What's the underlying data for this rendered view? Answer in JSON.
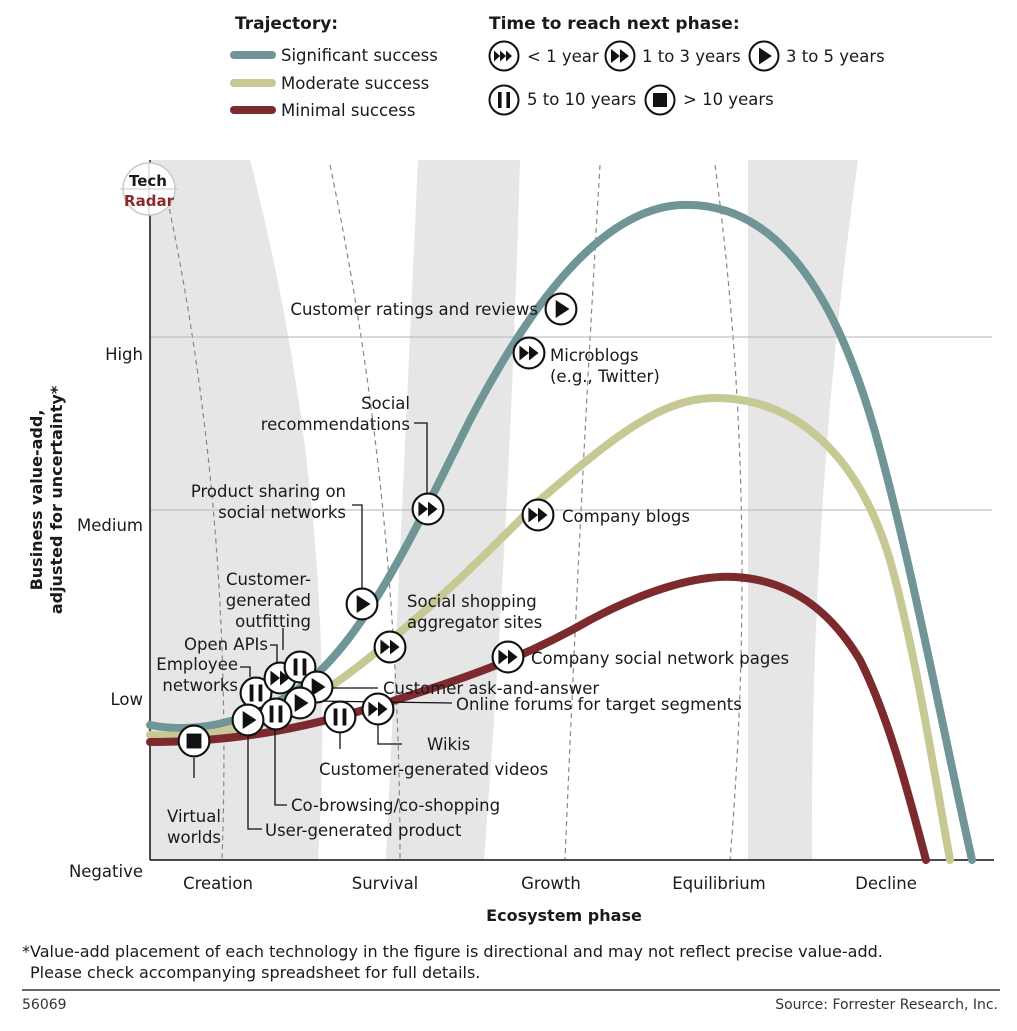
{
  "legend": {
    "trajectory_title": "Trajectory:",
    "trajectory": [
      {
        "label": "Significant success",
        "color": "#6f9596"
      },
      {
        "label": "Moderate success",
        "color": "#c6c994"
      },
      {
        "label": "Minimal success",
        "color": "#7d2a2e"
      }
    ],
    "time_title": "Time to reach next phase:",
    "time": [
      {
        "icon": "triple-arrow",
        "label": "< 1 year"
      },
      {
        "icon": "double-arrow",
        "label": "1 to 3 years"
      },
      {
        "icon": "single-arrow",
        "label": "3 to 5 years"
      },
      {
        "icon": "pause",
        "label": "5 to 10 years"
      },
      {
        "icon": "stop",
        "label": "> 10 years"
      }
    ]
  },
  "logo": {
    "line1": "Tech",
    "line2": "Radar"
  },
  "chart_data": {
    "type": "line",
    "title": "",
    "xlabel": "Ecosystem phase",
    "ylabel_line1": "Business value-add,",
    "ylabel_line2": "adjusted for uncertainty*",
    "x_categories": [
      "Creation",
      "Survival",
      "Growth",
      "Equilibrium",
      "Decline"
    ],
    "y_categories": [
      "Negative",
      "Low",
      "Medium",
      "High"
    ],
    "ylim": [
      "Negative",
      "High"
    ],
    "gridlines": [
      "Medium",
      "High"
    ],
    "series": [
      {
        "name": "Significant success",
        "color": "#6f9596"
      },
      {
        "name": "Moderate success",
        "color": "#c6c994"
      },
      {
        "name": "Minimal success",
        "color": "#7d2a2e"
      }
    ],
    "technologies": [
      {
        "name": "Customer ratings and reviews",
        "time": "single-arrow"
      },
      {
        "name": "Microblogs (e.g., Twitter)",
        "time": "double-arrow"
      },
      {
        "name": "Social recommendations",
        "time": "double-arrow"
      },
      {
        "name": "Company blogs",
        "time": "double-arrow"
      },
      {
        "name": "Product sharing on social networks",
        "time": "single-arrow"
      },
      {
        "name": "Social shopping aggregator sites",
        "time": "double-arrow"
      },
      {
        "name": "Company social network pages",
        "time": "double-arrow"
      },
      {
        "name": "Customer-generated outfitting",
        "time": "pause"
      },
      {
        "name": "Open APIs",
        "time": "double-arrow"
      },
      {
        "name": "Employee networks",
        "time": "pause"
      },
      {
        "name": "Customer ask-and-answer",
        "time": "single-arrow"
      },
      {
        "name": "Online forums for target segments",
        "time": "double-arrow"
      },
      {
        "name": "Wikis",
        "time": "double-arrow"
      },
      {
        "name": "Customer-generated videos",
        "time": "pause"
      },
      {
        "name": "Co-browsing/co-shopping",
        "time": "pause"
      },
      {
        "name": "User-generated product",
        "time": "single-arrow"
      },
      {
        "name": "Virtual worlds",
        "time": "stop"
      }
    ]
  },
  "labels": {
    "ratings": "Customer ratings and reviews",
    "microblogs_1": "Microblogs",
    "microblogs_2": "(e.g., Twitter)",
    "social_rec_1": "Social",
    "social_rec_2": "recommendations",
    "company_blogs": "Company blogs",
    "product_sharing_1": "Product sharing on",
    "product_sharing_2": "social networks",
    "cust_gen_1": "Customer-",
    "cust_gen_2": "generated",
    "cust_gen_3": "outfitting",
    "social_shop_1": "Social shopping",
    "social_shop_2": "aggregator sites",
    "open_apis": "Open APIs",
    "employee_1": "Employee",
    "employee_2": "networks",
    "company_sn": "Company social network pages",
    "ask_answer": "Customer ask-and-answer",
    "forums": "Online forums for target segments",
    "wikis": "Wikis",
    "videos": "Customer-generated videos",
    "cobrowsing": "Co-browsing/co-shopping",
    "virtual_1": "Virtual",
    "virtual_2": "worlds",
    "user_gen": "User-generated product"
  },
  "footer": {
    "note_1": "*Value-add placement of each technology in the figure is directional and may not reflect precise value-add.",
    "note_2": "Please check accompanying spreadsheet for full details.",
    "id": "56069",
    "source": "Source: Forrester Research, Inc."
  }
}
